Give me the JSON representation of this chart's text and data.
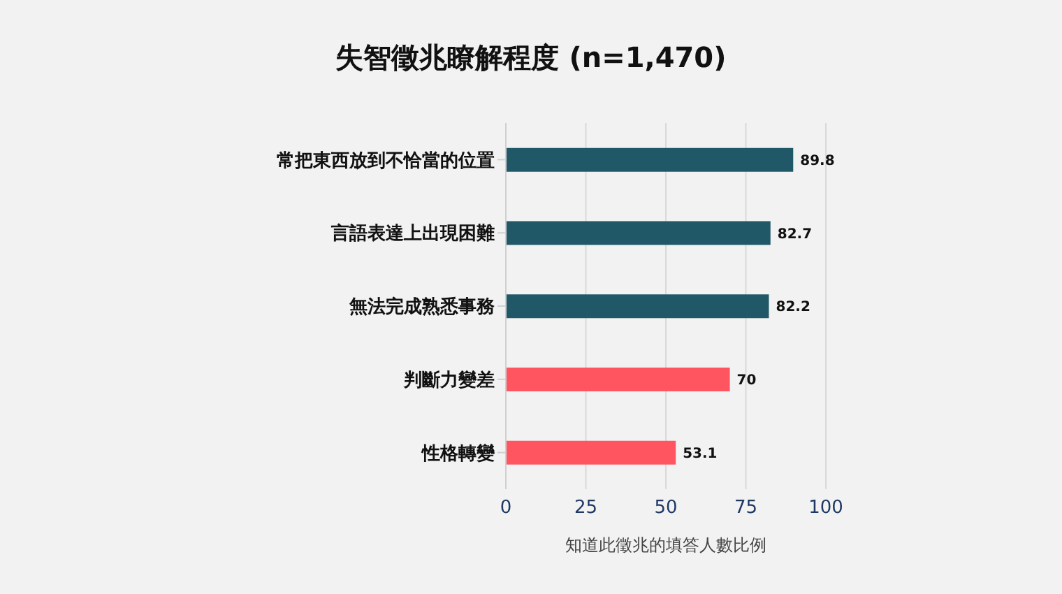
{
  "chart_data": {
    "type": "bar",
    "orientation": "horizontal",
    "title": "失智徵兆瞭解程度 (n=1,470)",
    "xlabel": "知道此徵兆的填答人數比例",
    "categories": [
      "常把東西放到不恰當的位置",
      "言語表達上出現困難",
      "無法完成熟悉事務",
      "判斷力變差",
      "性格轉變"
    ],
    "values": [
      89.8,
      82.7,
      82.2,
      70,
      53.1
    ],
    "colors": [
      "#215868",
      "#215868",
      "#215868",
      "#ff5561",
      "#ff5561"
    ],
    "xlim": [
      0,
      100
    ],
    "xticks": [
      0,
      25,
      50,
      75,
      100
    ],
    "grid": "x",
    "data_labels": true
  }
}
